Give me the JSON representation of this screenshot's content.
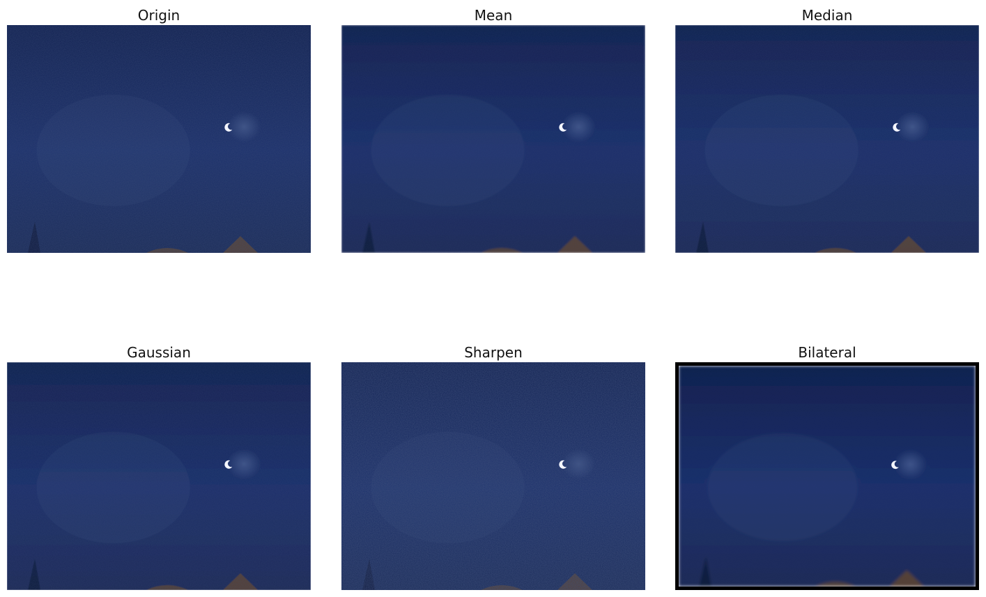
{
  "panels": [
    {
      "title": "Origin",
      "noise": 0.55,
      "blur": 0,
      "bordered": false
    },
    {
      "title": "Mean",
      "noise": 0.25,
      "blur": 1.2,
      "bordered": false
    },
    {
      "title": "Median",
      "noise": 0.3,
      "blur": 0.8,
      "bordered": false
    },
    {
      "title": "Gaussian",
      "noise": 0.35,
      "blur": 0.6,
      "bordered": false
    },
    {
      "title": "Sharpen",
      "noise": 0.85,
      "blur": 0,
      "bordered": false
    },
    {
      "title": "Bilateral",
      "noise": 0.08,
      "blur": 2.2,
      "bordered": true
    }
  ],
  "colors": {
    "sky_top": "#10204f",
    "sky_mid": "#1a2f6b",
    "sky_bottom": "#1a2b57",
    "haze": "#6f88b8",
    "moon": "#f4f6ff",
    "ground_glow": "#6a4a2a",
    "tree_silhouette": "#0b1433"
  },
  "content": {
    "subject": "crescent-moon-night-sky-photo"
  }
}
